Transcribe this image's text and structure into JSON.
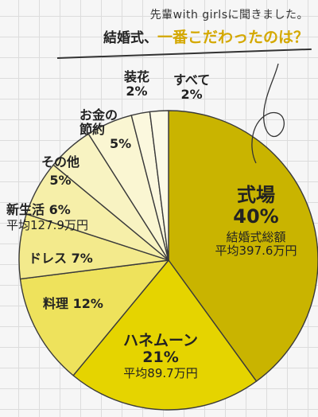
{
  "header": {
    "subtitle": "先輩with girlsに聞きました。",
    "title_prefix": "結婚式、",
    "title_accent": "一番こだわったのは？"
  },
  "chart_data": {
    "type": "pie",
    "start": "12 o'clock",
    "direction": "clockwise",
    "slices": [
      {
        "label": "式場",
        "value": 40,
        "value_label": "40%",
        "note1": "結婚式総額",
        "note2": "平均397.6万円",
        "color": "#c9b400"
      },
      {
        "label": "ハネムーン",
        "value": 21,
        "value_label": "21%",
        "note2": "平均89.7万円",
        "color": "#e5d400"
      },
      {
        "label": "料理",
        "value": 12,
        "value_label": "12%",
        "color": "#eee25c"
      },
      {
        "label": "ドレス",
        "value": 7,
        "value_label": "7%",
        "color": "#f3ea8c"
      },
      {
        "label": "新生活",
        "value": 6,
        "value_label": "6%",
        "note2": "平均127.9万円",
        "color": "#f6efa9"
      },
      {
        "label": "その他",
        "value": 5,
        "value_label": "5%",
        "color": "#f8f3c2"
      },
      {
        "label": "お金の節約",
        "label_l1": "お金の",
        "label_l2": "節約",
        "value": 5,
        "value_label": "5%",
        "color": "#faf6d2"
      },
      {
        "label": "装花",
        "value": 2,
        "value_label": "2%",
        "color": "#fbf8de"
      },
      {
        "label": "すべて",
        "value": 2,
        "value_label": "2%",
        "color": "#fcfae6"
      }
    ]
  }
}
